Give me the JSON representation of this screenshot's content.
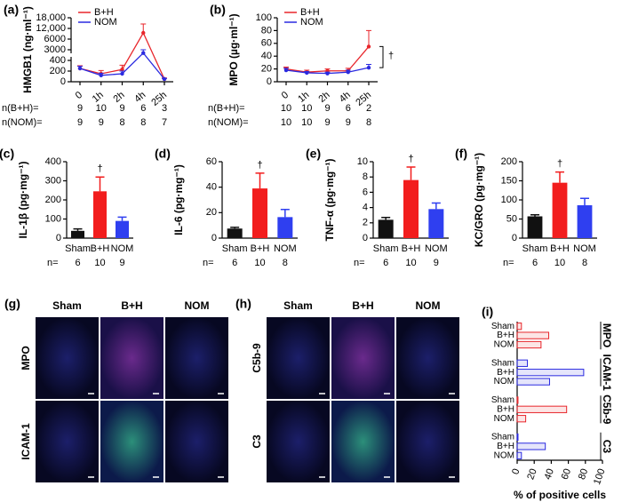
{
  "chart_data": [
    {
      "type": "line",
      "panel": "(a)",
      "ylabel": "HMGB1 (ng·ml⁻¹)",
      "categories": [
        "0",
        "1h",
        "2h",
        "4h",
        "25h"
      ],
      "axis_break": true,
      "ylim": [
        0,
        18000
      ],
      "yticks": [
        0,
        200,
        400,
        3000,
        6000,
        {
          "value": 12000,
          "label": "12,000"
        },
        {
          "value": 18000,
          "label": "18,000"
        }
      ],
      "series": [
        {
          "name": "B+H",
          "color": "#e8262b",
          "values": [
            250,
            150,
            230,
            9500,
            50
          ],
          "errors": [
            50,
            60,
            80,
            5000,
            20
          ]
        },
        {
          "name": "NOM",
          "color": "#2a2ae0",
          "values": [
            250,
            120,
            150,
            2200,
            50
          ],
          "errors": [
            40,
            40,
            50,
            800,
            10
          ]
        }
      ],
      "n_labels": [
        {
          "label": "n(B+H)=",
          "values": [
            9,
            10,
            9,
            6,
            3
          ]
        },
        {
          "label": "n(NOM)=",
          "values": [
            9,
            9,
            8,
            8,
            7
          ]
        }
      ]
    },
    {
      "type": "line",
      "panel": "(b)",
      "ylabel": "MPO (µg·ml⁻¹)",
      "categories": [
        "0",
        "1h",
        "2h",
        "4h",
        "25h"
      ],
      "ylim": [
        0,
        100
      ],
      "yticks": [
        0,
        20,
        40,
        60,
        80,
        100
      ],
      "annotation": "†",
      "series": [
        {
          "name": "B+H",
          "color": "#e8262b",
          "values": [
            20,
            15,
            17,
            17,
            55
          ],
          "errors": [
            3,
            3,
            3,
            4,
            25
          ]
        },
        {
          "name": "NOM",
          "color": "#2a2ae0",
          "values": [
            18,
            14,
            13,
            15,
            22
          ],
          "errors": [
            3,
            2,
            2,
            3,
            5
          ]
        }
      ],
      "n_labels": [
        {
          "label": "n(B+H)=",
          "values": [
            10,
            10,
            9,
            6,
            2
          ]
        },
        {
          "label": "n(NOM)=",
          "values": [
            10,
            10,
            9,
            9,
            8
          ]
        }
      ]
    },
    {
      "type": "bar",
      "panel": "(c)",
      "ylabel": "IL-1β (pg·mg⁻¹)",
      "categories": [
        "Sham",
        "B+H",
        "NOM"
      ],
      "colors": [
        "#111111",
        "#f21d1d",
        "#2f3ff0"
      ],
      "values": [
        38,
        245,
        90
      ],
      "errors": [
        10,
        75,
        20
      ],
      "ylim": [
        0,
        400
      ],
      "yticks": [
        0,
        100,
        200,
        300,
        400
      ],
      "annotation": "†",
      "n_labels": [
        {
          "label": "n=",
          "values": [
            6,
            10,
            9
          ]
        }
      ]
    },
    {
      "type": "bar",
      "panel": "(d)",
      "ylabel": "IL-6 (pg·mg⁻¹)",
      "categories": [
        "Sham",
        "B+H",
        "NOM"
      ],
      "colors": [
        "#111111",
        "#f21d1d",
        "#2f3ff0"
      ],
      "values": [
        7.5,
        39,
        16.5
      ],
      "errors": [
        1,
        12,
        6
      ],
      "ylim": [
        0,
        60
      ],
      "yticks": [
        0,
        20,
        40,
        60
      ],
      "annotation": "†",
      "n_labels": [
        {
          "label": "n=",
          "values": [
            6,
            10,
            8
          ]
        }
      ]
    },
    {
      "type": "bar",
      "panel": "(e)",
      "ylabel": "TNF-α (pg·mg⁻¹)",
      "categories": [
        "Sham",
        "B+H",
        "NOM"
      ],
      "colors": [
        "#111111",
        "#f21d1d",
        "#2f3ff0"
      ],
      "values": [
        2.4,
        7.6,
        3.8
      ],
      "errors": [
        0.3,
        1.7,
        0.8
      ],
      "ylim": [
        0,
        10
      ],
      "yticks": [
        0,
        2,
        4,
        6,
        8,
        10
      ],
      "annotation": "†",
      "n_labels": [
        {
          "label": "n=",
          "values": [
            6,
            10,
            9
          ]
        }
      ]
    },
    {
      "type": "bar",
      "panel": "(f)",
      "ylabel": "KC/GRO (pg·mg⁻¹)",
      "categories": [
        "Sham",
        "B+H",
        "NOM"
      ],
      "colors": [
        "#111111",
        "#f21d1d",
        "#2f3ff0"
      ],
      "values": [
        57,
        145,
        86
      ],
      "errors": [
        4,
        28,
        18
      ],
      "ylim": [
        0,
        200
      ],
      "yticks": [
        0,
        50,
        100,
        150,
        200
      ],
      "annotation": "†",
      "n_labels": [
        {
          "label": "n=",
          "values": [
            6,
            10,
            8
          ]
        }
      ]
    },
    {
      "type": "hbar",
      "panel": "(i)",
      "xlabel": "% of positive cells",
      "categories": [
        "Sham",
        "B+H",
        "NOM"
      ],
      "xlim": [
        0,
        100
      ],
      "xticks": [
        0,
        20,
        40,
        60,
        80,
        100
      ],
      "groups": [
        {
          "name": "MPO",
          "color": "#e8262b",
          "values": [
            5,
            37,
            28
          ]
        },
        {
          "name": "ICAM-1",
          "color": "#2a2ae0",
          "values": [
            12,
            78,
            38
          ]
        },
        {
          "name": "C5b-9",
          "color": "#e8262b",
          "values": [
            1,
            58,
            10
          ]
        },
        {
          "name": "C3",
          "color": "#2a2ae0",
          "values": [
            1,
            33,
            5
          ]
        }
      ]
    }
  ],
  "image_panels": [
    {
      "panel": "(g)",
      "columns": [
        "Sham",
        "B+H",
        "NOM"
      ],
      "rows": [
        "MPO",
        "ICAM-1"
      ]
    },
    {
      "panel": "(h)",
      "columns": [
        "Sham",
        "B+H",
        "NOM"
      ],
      "rows": [
        "C5b-9",
        "C3"
      ]
    }
  ]
}
